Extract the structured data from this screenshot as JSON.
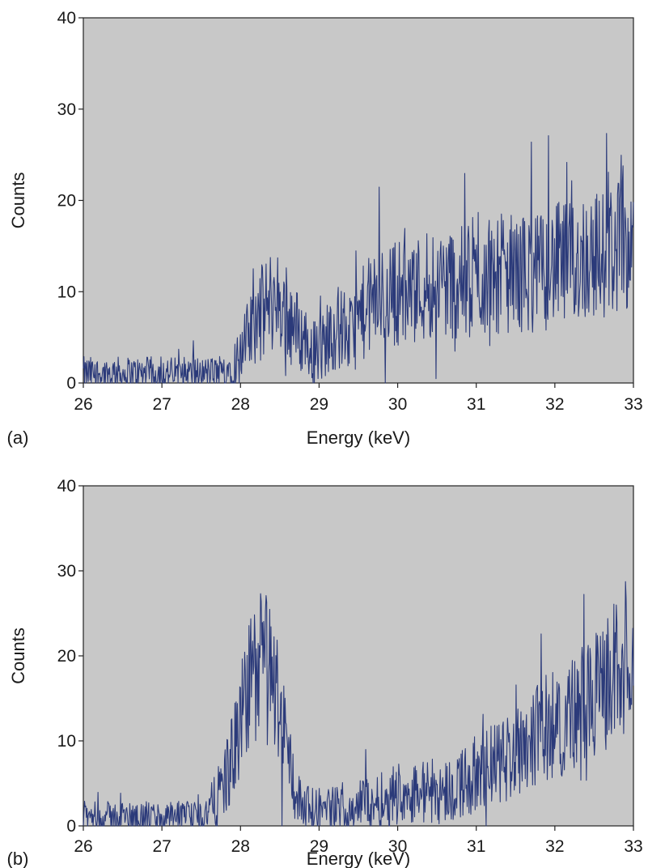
{
  "chart_data": [
    {
      "panel_label": "(a)",
      "type": "line",
      "xlabel": "Energy (keV)",
      "ylabel": "Counts",
      "xlim": [
        26,
        33
      ],
      "ylim": [
        0,
        40
      ],
      "xticks": [
        "26",
        "27",
        "28",
        "29",
        "30",
        "31",
        "32",
        "33"
      ],
      "yticks": [
        "0",
        "10",
        "20",
        "30",
        "40"
      ],
      "grid": false,
      "plot_background": "#c8c8c8",
      "series": [
        {
          "color": "#2b3a7a",
          "x": [
            26.0,
            26.25,
            26.5,
            26.75,
            27.0,
            27.25,
            27.5,
            27.75,
            27.9,
            28.0,
            28.1,
            28.2,
            28.3,
            28.4,
            28.5,
            28.6,
            28.7,
            28.8,
            28.9,
            29.0,
            29.1,
            29.2,
            29.3,
            29.4,
            29.5,
            29.6,
            29.7,
            29.8,
            29.9,
            30.0,
            30.2,
            30.4,
            30.6,
            30.8,
            31.0,
            31.2,
            31.4,
            31.6,
            31.8,
            32.0,
            32.2,
            32.4,
            32.6,
            32.8,
            33.0
          ],
          "y": [
            1,
            1,
            1,
            1,
            1,
            1,
            1,
            1,
            2,
            3,
            5,
            7,
            8,
            9,
            9,
            7,
            6,
            5,
            4,
            3,
            5,
            6,
            6,
            5,
            7,
            8,
            9,
            9,
            10,
            10,
            10,
            11,
            11,
            11,
            11,
            12,
            12,
            12,
            12,
            13,
            13,
            14,
            14,
            15,
            16
          ]
        }
      ]
    },
    {
      "panel_label": "(b)",
      "type": "line",
      "xlabel": "Energy (keV)",
      "ylabel": "Counts",
      "xlim": [
        26,
        33
      ],
      "ylim": [
        0,
        40
      ],
      "xticks": [
        "26",
        "27",
        "28",
        "29",
        "30",
        "31",
        "32",
        "33"
      ],
      "yticks": [
        "0",
        "10",
        "20",
        "30",
        "40"
      ],
      "grid": false,
      "plot_background": "#c8c8c8",
      "series": [
        {
          "color": "#2b3a7a",
          "x": [
            26.0,
            26.5,
            27.0,
            27.5,
            27.7,
            27.9,
            28.0,
            28.1,
            28.2,
            28.3,
            28.4,
            28.5,
            28.6,
            28.7,
            28.8,
            29.0,
            29.2,
            29.4,
            29.6,
            29.8,
            30.0,
            30.2,
            30.4,
            30.6,
            30.8,
            31.0,
            31.2,
            31.4,
            31.6,
            31.8,
            32.0,
            32.2,
            32.4,
            32.6,
            32.8,
            33.0
          ],
          "y": [
            1,
            1,
            1,
            1,
            3,
            8,
            12,
            16,
            19,
            20,
            18,
            14,
            9,
            4,
            2,
            2,
            2,
            2,
            3,
            3,
            4,
            4,
            4,
            4,
            5,
            6,
            7,
            8,
            10,
            11,
            12,
            13,
            14,
            16,
            19,
            22
          ]
        }
      ]
    }
  ]
}
